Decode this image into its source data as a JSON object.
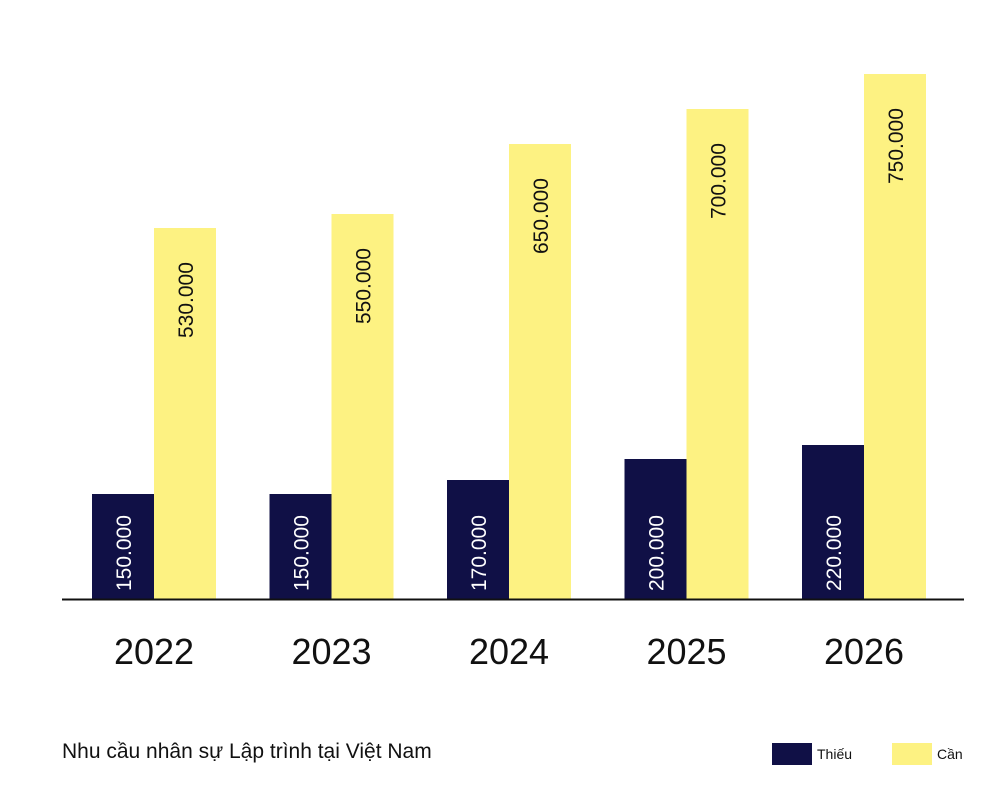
{
  "chart_data": {
    "type": "bar",
    "title": "Nhu cầu nhân sự Lập trình tại Việt Nam",
    "categories": [
      "2022",
      "2023",
      "2024",
      "2025",
      "2026"
    ],
    "series": [
      {
        "name": "Thiếu",
        "color": "#101046",
        "values": [
          150000,
          150000,
          170000,
          200000,
          220000
        ],
        "labels": [
          "150.000",
          "150.000",
          "170.000",
          "200.000",
          "220.000"
        ]
      },
      {
        "name": "Cần",
        "color": "#fdf282",
        "values": [
          530000,
          550000,
          650000,
          700000,
          750000
        ],
        "labels": [
          "530.000",
          "550.000",
          "650.000",
          "700.000",
          "750.000"
        ]
      }
    ],
    "ylim": [
      0,
      750000
    ],
    "grid": false,
    "legend_position": "bottom-right"
  }
}
